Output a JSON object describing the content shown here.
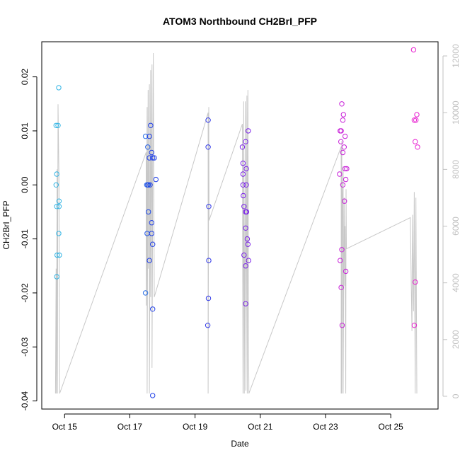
{
  "chart_data": {
    "type": "scatter",
    "title": "ATOM3 Northbound CH2BrI_PFP",
    "xlabel": "Date",
    "ylabel": "CH2BrI_PFP",
    "x_ticks": [
      "Oct 15",
      "Oct 17",
      "Oct 19",
      "Oct 21",
      "Oct 23",
      "Oct 25"
    ],
    "x_tick_days": [
      15,
      17,
      19,
      21,
      23,
      25
    ],
    "xlim_days": [
      14.3,
      26.45
    ],
    "y_ticks": [
      "-0.04",
      "-0.03",
      "-0.02",
      "-0.01",
      "0.00",
      "0.01",
      "0.02"
    ],
    "y_tick_values": [
      -0.04,
      -0.03,
      -0.02,
      -0.01,
      0.0,
      0.01,
      0.02
    ],
    "ylim": [
      -0.0415,
      0.0265
    ],
    "y2_ticks": [
      "0",
      "2000",
      "4000",
      "6000",
      "8000",
      "10000",
      "12000"
    ],
    "y2_tick_values": [
      0,
      2000,
      4000,
      6000,
      8000,
      10000,
      12000
    ],
    "y2lim": [
      -450,
      12500
    ],
    "grid": false,
    "point_color_scale": [
      "#33b5e5",
      "#1f3fe8",
      "#7a1fe8",
      "#c81fd8",
      "#e81fd0"
    ],
    "line_color": "#c8c8c8",
    "points": [
      {
        "day": 14.74,
        "y": 0.011,
        "c": 0.0
      },
      {
        "day": 14.76,
        "y": 0.002,
        "c": 0.0
      },
      {
        "day": 14.74,
        "y": 0.0,
        "c": 0.0
      },
      {
        "day": 14.76,
        "y": -0.004,
        "c": 0.0
      },
      {
        "day": 14.77,
        "y": -0.013,
        "c": 0.0
      },
      {
        "day": 14.76,
        "y": -0.017,
        "c": 0.0
      },
      {
        "day": 14.8,
        "y": 0.011,
        "c": 0.0
      },
      {
        "day": 14.82,
        "y": 0.018,
        "c": 0.0
      },
      {
        "day": 14.83,
        "y": -0.003,
        "c": 0.0
      },
      {
        "day": 14.83,
        "y": -0.004,
        "c": 0.0
      },
      {
        "day": 14.82,
        "y": -0.009,
        "c": 0.0
      },
      {
        "day": 14.84,
        "y": -0.013,
        "c": 0.0
      },
      {
        "day": 17.48,
        "y": 0.009,
        "c": 0.15
      },
      {
        "day": 17.48,
        "y": -0.02,
        "c": 0.15
      },
      {
        "day": 17.52,
        "y": 0.0,
        "c": 0.18
      },
      {
        "day": 17.55,
        "y": 0.007,
        "c": 0.18
      },
      {
        "day": 17.55,
        "y": 0.0,
        "c": 0.2
      },
      {
        "day": 17.53,
        "y": -0.009,
        "c": 0.2
      },
      {
        "day": 17.57,
        "y": 0.0,
        "c": 0.22
      },
      {
        "day": 17.57,
        "y": -0.005,
        "c": 0.22
      },
      {
        "day": 17.6,
        "y": 0.009,
        "c": 0.25
      },
      {
        "day": 17.6,
        "y": 0.005,
        "c": 0.25
      },
      {
        "day": 17.6,
        "y": -0.014,
        "c": 0.25
      },
      {
        "day": 17.62,
        "y": 0.0,
        "c": 0.25
      },
      {
        "day": 17.64,
        "y": 0.011,
        "c": 0.25
      },
      {
        "day": 17.67,
        "y": 0.006,
        "c": 0.25
      },
      {
        "day": 17.67,
        "y": -0.007,
        "c": 0.25
      },
      {
        "day": 17.67,
        "y": -0.009,
        "c": 0.25
      },
      {
        "day": 17.7,
        "y": 0.005,
        "c": 0.25
      },
      {
        "day": 17.7,
        "y": -0.011,
        "c": 0.25
      },
      {
        "day": 17.7,
        "y": -0.023,
        "c": 0.25
      },
      {
        "day": 17.7,
        "y": -0.039,
        "c": 0.25
      },
      {
        "day": 17.75,
        "y": 0.005,
        "c": 0.25
      },
      {
        "day": 17.8,
        "y": 0.001,
        "c": 0.25
      },
      {
        "day": 19.4,
        "y": 0.012,
        "c": 0.3
      },
      {
        "day": 19.4,
        "y": 0.007,
        "c": 0.3
      },
      {
        "day": 19.42,
        "y": -0.004,
        "c": 0.3
      },
      {
        "day": 19.42,
        "y": -0.014,
        "c": 0.3
      },
      {
        "day": 19.41,
        "y": -0.021,
        "c": 0.3
      },
      {
        "day": 19.39,
        "y": -0.026,
        "c": 0.3
      },
      {
        "day": 20.45,
        "y": 0.007,
        "c": 0.5
      },
      {
        "day": 20.47,
        "y": 0.004,
        "c": 0.5
      },
      {
        "day": 20.47,
        "y": 0.002,
        "c": 0.5
      },
      {
        "day": 20.47,
        "y": 0.0,
        "c": 0.5
      },
      {
        "day": 20.48,
        "y": -0.002,
        "c": 0.5
      },
      {
        "day": 20.5,
        "y": -0.004,
        "c": 0.5
      },
      {
        "day": 20.5,
        "y": -0.013,
        "c": 0.5
      },
      {
        "day": 20.55,
        "y": 0.008,
        "c": 0.5
      },
      {
        "day": 20.55,
        "y": -0.005,
        "c": 0.5
      },
      {
        "day": 20.55,
        "y": -0.008,
        "c": 0.5
      },
      {
        "day": 20.55,
        "y": -0.015,
        "c": 0.5
      },
      {
        "day": 20.55,
        "y": -0.022,
        "c": 0.5
      },
      {
        "day": 20.57,
        "y": 0.003,
        "c": 0.5
      },
      {
        "day": 20.57,
        "y": 0.0,
        "c": 0.5
      },
      {
        "day": 20.58,
        "y": -0.005,
        "c": 0.5
      },
      {
        "day": 20.6,
        "y": -0.01,
        "c": 0.5
      },
      {
        "day": 20.62,
        "y": -0.011,
        "c": 0.5
      },
      {
        "day": 20.63,
        "y": 0.01,
        "c": 0.5
      },
      {
        "day": 20.64,
        "y": -0.014,
        "c": 0.5
      },
      {
        "day": 23.43,
        "y": 0.002,
        "c": 0.75
      },
      {
        "day": 23.45,
        "y": -0.014,
        "c": 0.75
      },
      {
        "day": 23.45,
        "y": 0.01,
        "c": 0.75
      },
      {
        "day": 23.47,
        "y": 0.008,
        "c": 0.75
      },
      {
        "day": 23.48,
        "y": 0.01,
        "c": 0.75
      },
      {
        "day": 23.48,
        "y": -0.019,
        "c": 0.75
      },
      {
        "day": 23.5,
        "y": 0.015,
        "c": 0.75
      },
      {
        "day": 23.5,
        "y": -0.012,
        "c": 0.75
      },
      {
        "day": 23.51,
        "y": -0.026,
        "c": 0.75
      },
      {
        "day": 23.53,
        "y": 0.012,
        "c": 0.75
      },
      {
        "day": 23.53,
        "y": 0.006,
        "c": 0.75
      },
      {
        "day": 23.53,
        "y": 0.0,
        "c": 0.75
      },
      {
        "day": 23.55,
        "y": 0.013,
        "c": 0.75
      },
      {
        "day": 23.57,
        "y": 0.007,
        "c": 0.75
      },
      {
        "day": 23.58,
        "y": -0.003,
        "c": 0.75
      },
      {
        "day": 23.6,
        "y": 0.009,
        "c": 0.75
      },
      {
        "day": 23.6,
        "y": 0.003,
        "c": 0.75
      },
      {
        "day": 23.62,
        "y": 0.001,
        "c": 0.75
      },
      {
        "day": 23.62,
        "y": -0.016,
        "c": 0.75
      },
      {
        "day": 23.65,
        "y": 0.003,
        "c": 0.75
      },
      {
        "day": 25.7,
        "y": 0.025,
        "c": 1.0
      },
      {
        "day": 25.72,
        "y": 0.012,
        "c": 1.0
      },
      {
        "day": 25.72,
        "y": -0.026,
        "c": 1.0
      },
      {
        "day": 25.75,
        "y": 0.008,
        "c": 1.0
      },
      {
        "day": 25.75,
        "y": -0.018,
        "c": 1.0
      },
      {
        "day": 25.77,
        "y": 0.012,
        "c": 1.0
      },
      {
        "day": 25.8,
        "y": 0.013,
        "c": 1.0
      },
      {
        "day": 25.82,
        "y": 0.007,
        "c": 1.0
      }
    ],
    "altitude_line": [
      [
        14.72,
        100
      ],
      [
        14.74,
        4500
      ],
      [
        14.75,
        100
      ],
      [
        14.77,
        8000
      ],
      [
        14.78,
        100
      ],
      [
        14.8,
        10300
      ],
      [
        14.83,
        7500
      ],
      [
        14.85,
        100
      ],
      [
        17.5,
        8600
      ],
      [
        17.5,
        3200
      ],
      [
        17.53,
        10200
      ],
      [
        17.53,
        100
      ],
      [
        17.56,
        10800
      ],
      [
        17.56,
        4500
      ],
      [
        17.6,
        11000
      ],
      [
        17.6,
        100
      ],
      [
        17.64,
        11500
      ],
      [
        17.64,
        3500
      ],
      [
        17.68,
        11700
      ],
      [
        17.68,
        1000
      ],
      [
        17.72,
        12100
      ],
      [
        17.75,
        3500
      ],
      [
        19.4,
        10000
      ],
      [
        19.4,
        100
      ],
      [
        19.42,
        10200
      ],
      [
        19.43,
        6200
      ],
      [
        20.45,
        9600
      ],
      [
        20.47,
        100
      ],
      [
        20.49,
        10400
      ],
      [
        20.51,
        100
      ],
      [
        20.54,
        10400
      ],
      [
        20.56,
        200
      ],
      [
        20.59,
        10600
      ],
      [
        20.6,
        100
      ],
      [
        20.62,
        10800
      ],
      [
        20.64,
        2000
      ],
      [
        20.65,
        100
      ],
      [
        23.48,
        8800
      ],
      [
        23.48,
        100
      ],
      [
        23.5,
        9000
      ],
      [
        23.5,
        100
      ],
      [
        23.52,
        7100
      ],
      [
        23.54,
        8100
      ],
      [
        23.54,
        100
      ],
      [
        23.57,
        7000
      ],
      [
        23.59,
        3900
      ],
      [
        23.6,
        6000
      ],
      [
        23.62,
        100
      ],
      [
        23.63,
        7300
      ],
      [
        23.64,
        5200
      ],
      [
        25.6,
        6300
      ],
      [
        25.65,
        2300
      ],
      [
        25.67,
        6400
      ],
      [
        25.7,
        3000
      ],
      [
        25.72,
        7200
      ],
      [
        25.75,
        100
      ],
      [
        25.77,
        7000
      ],
      [
        25.8,
        100
      ]
    ]
  }
}
